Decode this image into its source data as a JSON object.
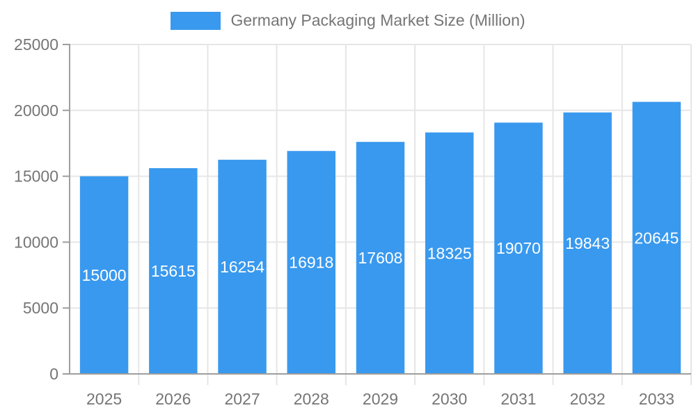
{
  "legend": {
    "label": "Germany Packaging Market Size (Million)"
  },
  "chart_data": {
    "type": "bar",
    "title": "",
    "xlabel": "",
    "ylabel": "",
    "categories": [
      "2025",
      "2026",
      "2027",
      "2028",
      "2029",
      "2030",
      "2031",
      "2032",
      "2033"
    ],
    "series": [
      {
        "name": "Germany Packaging Market Size (Million)",
        "values": [
          15000,
          15615,
          16254,
          16918,
          17608,
          18325,
          19070,
          19843,
          20645
        ]
      }
    ],
    "ylim": [
      0,
      25000
    ],
    "yticks": [
      0,
      5000,
      10000,
      15000,
      20000,
      25000
    ],
    "grid": true,
    "legend_position": "top-center",
    "value_labels": "inside-center",
    "colors": {
      "bar": "#3999EE",
      "bar_label": "#FFFFFF",
      "axis_text": "#757575",
      "axis_line": "#9E9E9E",
      "grid_line": "#E6E6E6"
    }
  }
}
